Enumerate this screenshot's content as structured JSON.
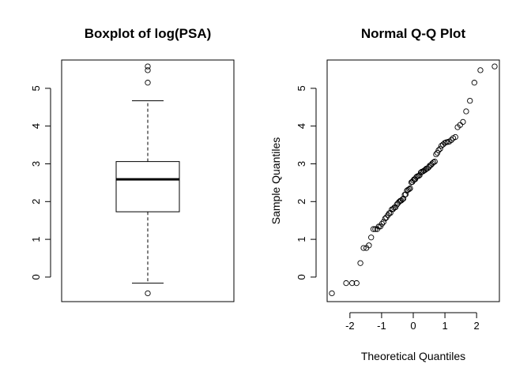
{
  "chart_data": [
    {
      "type": "boxplot",
      "title": "Boxplot of log(PSA)",
      "xlabel": "",
      "ylabel": "",
      "yticks": [
        0,
        1,
        2,
        3,
        4,
        5
      ],
      "ylim": [
        -0.65,
        5.75
      ],
      "grid": false,
      "box": {
        "min": -0.16,
        "q1": 1.73,
        "median": 2.59,
        "q3": 3.06,
        "max": 4.67
      },
      "outliers": [
        -0.43,
        5.15,
        5.48,
        5.58
      ]
    },
    {
      "type": "scatter",
      "title": "Normal Q-Q Plot",
      "xlabel": "Theoretical Quantiles",
      "ylabel": "Sample Quantiles",
      "xticks": [
        -2,
        -1,
        0,
        1,
        2
      ],
      "yticks": [
        0,
        1,
        2,
        3,
        4,
        5
      ],
      "xlim": [
        -2.72,
        2.72
      ],
      "ylim": [
        -0.65,
        5.75
      ],
      "grid": false,
      "points": [
        [
          -2.57,
          -0.43
        ],
        [
          -2.12,
          -0.16
        ],
        [
          -1.93,
          -0.16
        ],
        [
          -1.79,
          -0.16
        ],
        [
          -1.67,
          0.37
        ],
        [
          -1.57,
          0.77
        ],
        [
          -1.48,
          0.77
        ],
        [
          -1.4,
          0.84
        ],
        [
          -1.33,
          1.05
        ],
        [
          -1.26,
          1.27
        ],
        [
          -1.2,
          1.27
        ],
        [
          -1.14,
          1.27
        ],
        [
          -1.09,
          1.34
        ],
        [
          -1.04,
          1.34
        ],
        [
          -0.99,
          1.41
        ],
        [
          -0.94,
          1.46
        ],
        [
          -0.89,
          1.55
        ],
        [
          -0.85,
          1.58
        ],
        [
          -0.8,
          1.64
        ],
        [
          -0.76,
          1.69
        ],
        [
          -0.72,
          1.7
        ],
        [
          -0.68,
          1.79
        ],
        [
          -0.64,
          1.8
        ],
        [
          -0.6,
          1.84
        ],
        [
          -0.56,
          1.85
        ],
        [
          -0.52,
          1.92
        ],
        [
          -0.49,
          1.95
        ],
        [
          -0.45,
          1.99
        ],
        [
          -0.41,
          2.02
        ],
        [
          -0.38,
          2.03
        ],
        [
          -0.34,
          2.06
        ],
        [
          -0.31,
          2.08
        ],
        [
          -0.27,
          2.18
        ],
        [
          -0.24,
          2.19
        ],
        [
          -0.2,
          2.29
        ],
        [
          -0.17,
          2.31
        ],
        [
          -0.13,
          2.33
        ],
        [
          -0.1,
          2.35
        ],
        [
          -0.06,
          2.51
        ],
        [
          -0.03,
          2.52
        ],
        [
          0.0,
          2.56
        ],
        [
          0.03,
          2.59
        ],
        [
          0.06,
          2.59
        ],
        [
          0.1,
          2.65
        ],
        [
          0.13,
          2.67
        ],
        [
          0.17,
          2.68
        ],
        [
          0.2,
          2.7
        ],
        [
          0.24,
          2.77
        ],
        [
          0.27,
          2.79
        ],
        [
          0.31,
          2.8
        ],
        [
          0.34,
          2.82
        ],
        [
          0.38,
          2.84
        ],
        [
          0.41,
          2.87
        ],
        [
          0.45,
          2.88
        ],
        [
          0.49,
          2.91
        ],
        [
          0.52,
          2.95
        ],
        [
          0.56,
          2.97
        ],
        [
          0.6,
          3.01
        ],
        [
          0.64,
          3.04
        ],
        [
          0.68,
          3.06
        ],
        [
          0.72,
          3.25
        ],
        [
          0.76,
          3.29
        ],
        [
          0.8,
          3.36
        ],
        [
          0.85,
          3.4
        ],
        [
          0.89,
          3.48
        ],
        [
          0.94,
          3.51
        ],
        [
          0.99,
          3.55
        ],
        [
          1.04,
          3.57
        ],
        [
          1.09,
          3.58
        ],
        [
          1.14,
          3.59
        ],
        [
          1.2,
          3.63
        ],
        [
          1.26,
          3.68
        ],
        [
          1.33,
          3.71
        ],
        [
          1.4,
          3.97
        ],
        [
          1.48,
          4.03
        ],
        [
          1.57,
          4.11
        ],
        [
          1.67,
          4.39
        ],
        [
          1.79,
          4.67
        ],
        [
          1.93,
          5.15
        ],
        [
          2.12,
          5.48
        ],
        [
          2.57,
          5.58
        ]
      ]
    }
  ]
}
